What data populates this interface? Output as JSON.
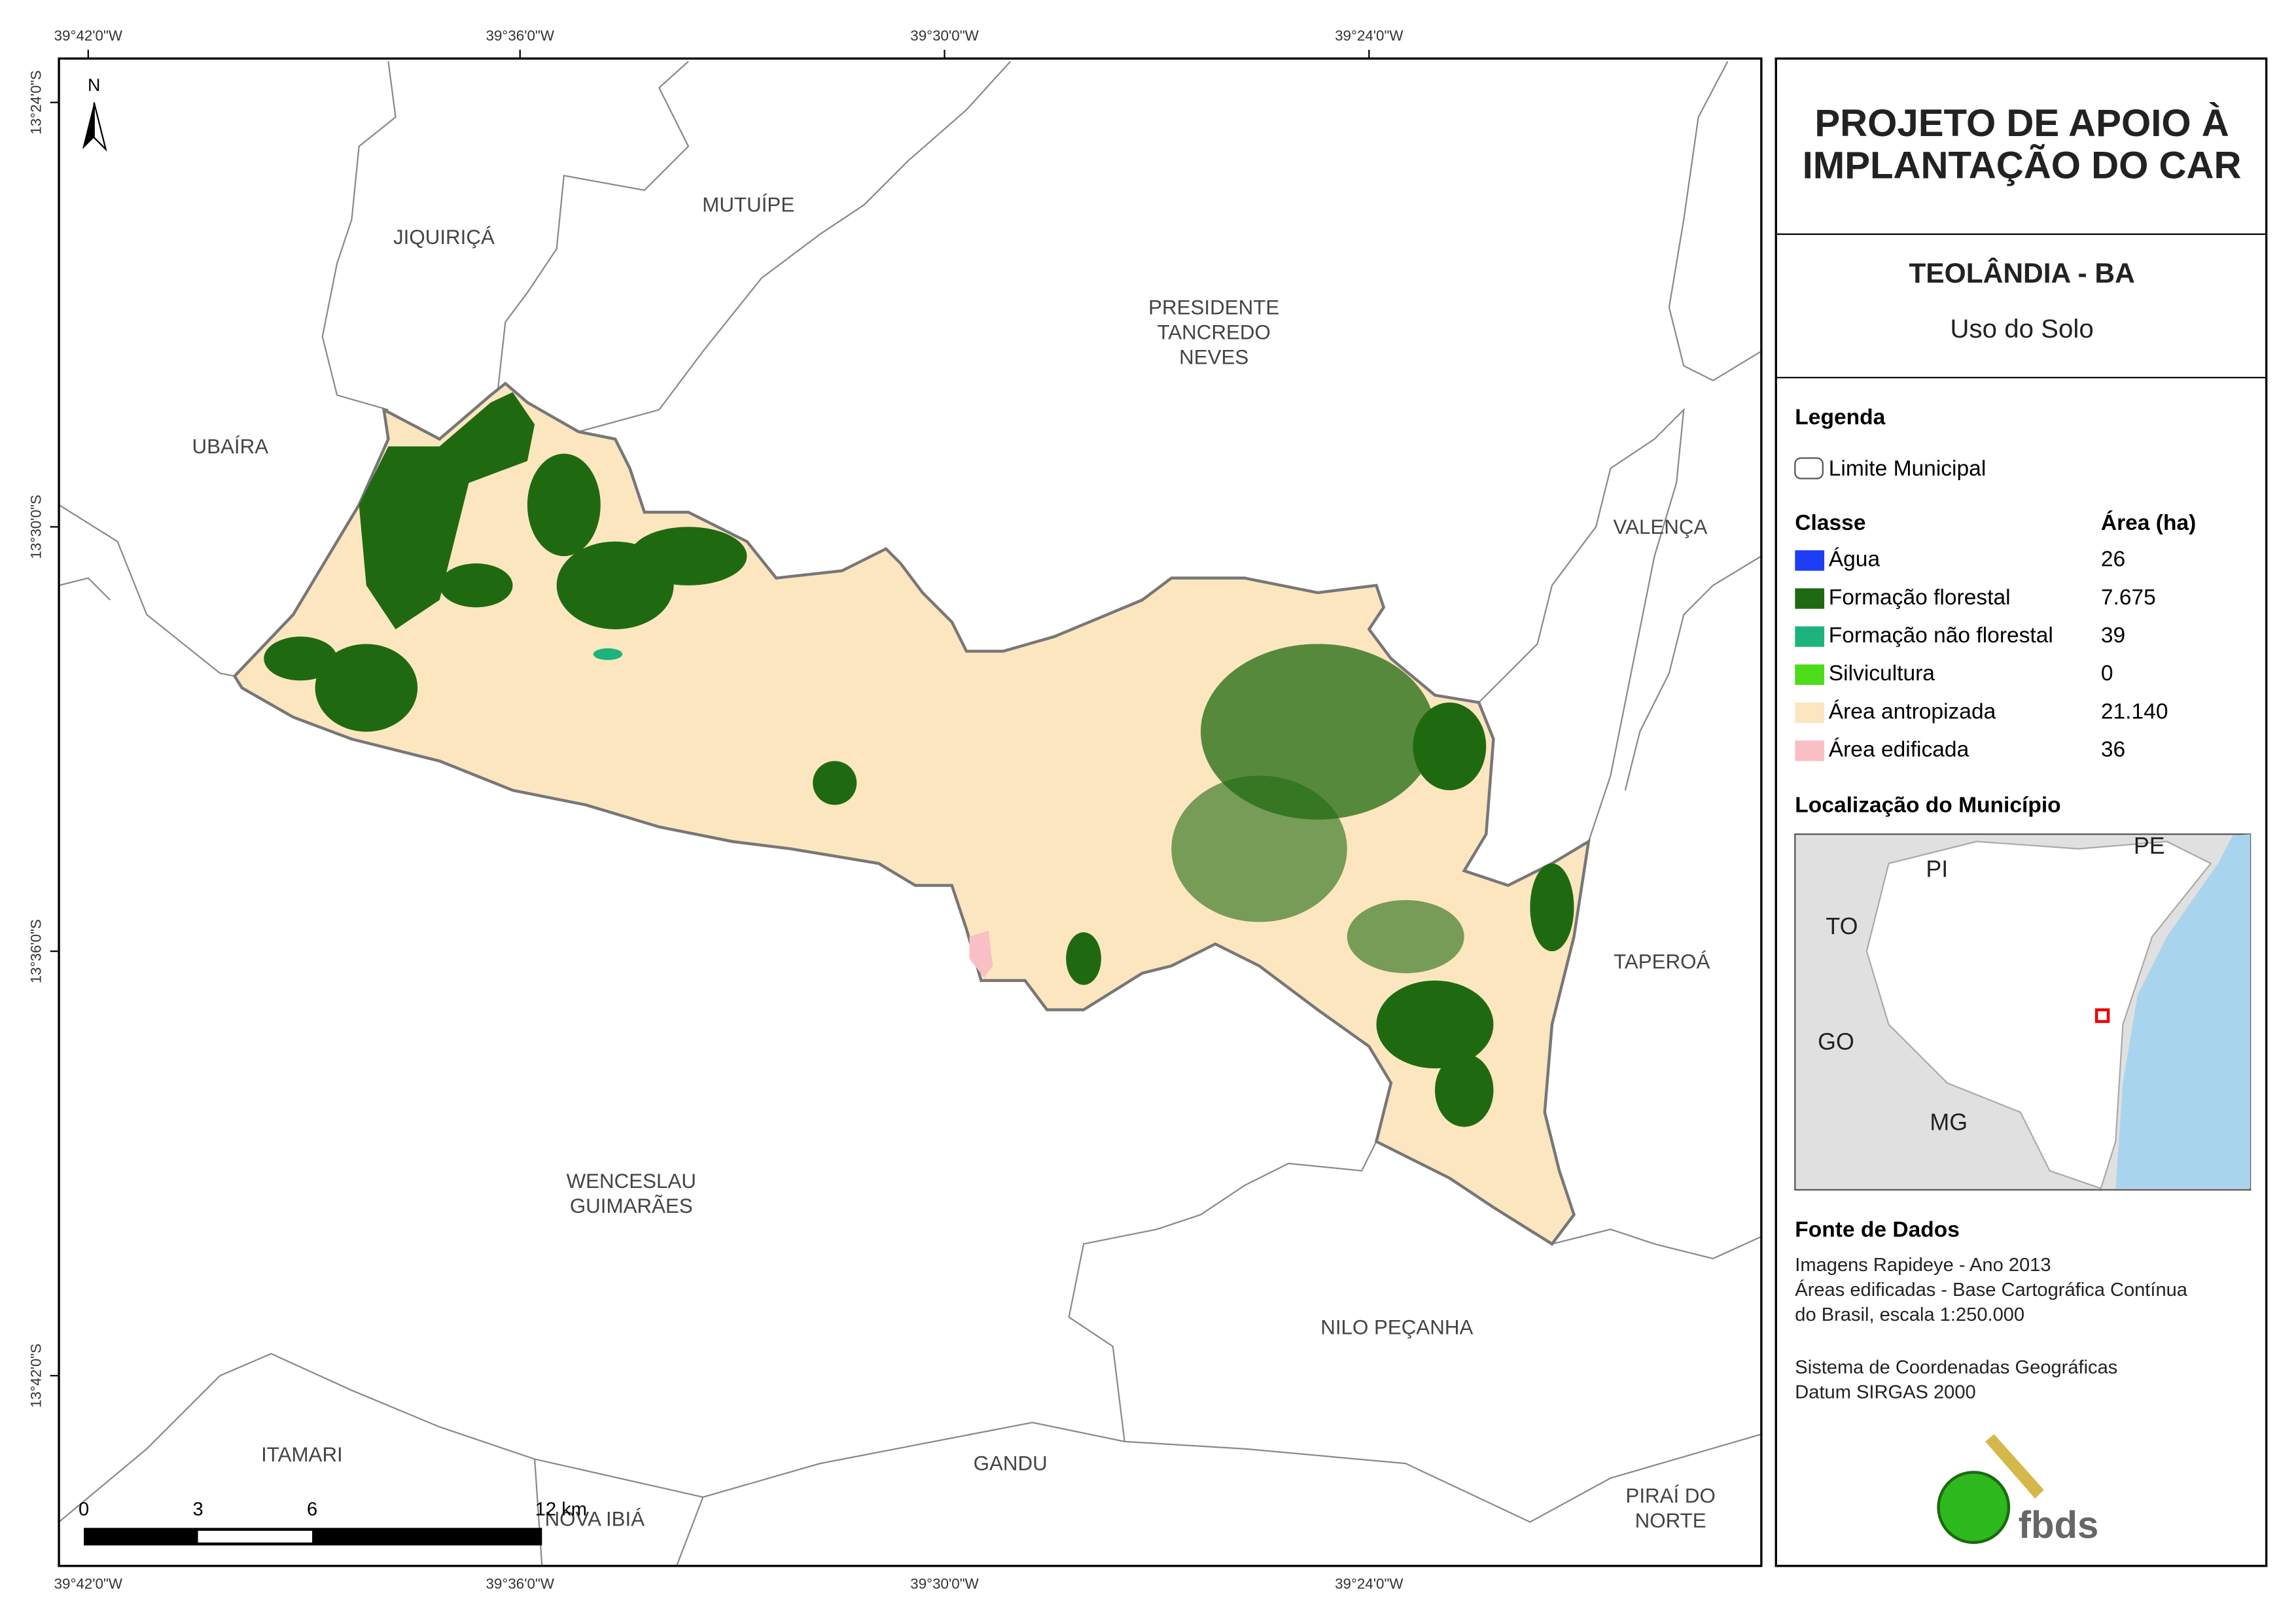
{
  "header": {
    "title_lines": [
      "PROJETO DE APOIO À",
      "IMPLANTAÇÃO DO CAR"
    ],
    "municipality": "TEOLÂNDIA - BA",
    "theme": "Uso do Solo"
  },
  "legend": {
    "title": "Legenda",
    "boundary": "Limite Municipal",
    "class_header": "Classe",
    "area_header": "Área (ha)",
    "classes": [
      {
        "name": "Água",
        "color": "#1d3ef5",
        "area": "26"
      },
      {
        "name": "Formação florestal",
        "color": "#1f6a10",
        "area": "7.675"
      },
      {
        "name": "Formação não florestal",
        "color": "#1cb47c",
        "area": "39"
      },
      {
        "name": "Silvicultura",
        "color": "#4ddc1a",
        "area": "0"
      },
      {
        "name": "Área antropizada",
        "color": "#fbe6c0",
        "area": "21.140"
      },
      {
        "name": "Área edificada",
        "color": "#f8bfc4",
        "area": "36"
      }
    ]
  },
  "location": {
    "title": "Localização do Município",
    "labels": [
      "PI",
      "PE",
      "TO",
      "GO",
      "MG"
    ]
  },
  "sources": {
    "title": "Fonte de Dados",
    "paragraphs": [
      [
        "Imagens Rapideye - Ano 2013",
        "Áreas edificadas - Base Cartográfica Contínua",
        "do Brasil, escala 1:250.000"
      ],
      [
        "Sistema de Coordenadas Geográficas",
        "Datum SIRGAS 2000"
      ]
    ]
  },
  "logo": "fbds",
  "map": {
    "north": "N",
    "municipalities": [
      {
        "lines": [
          "JIQUIRIÇÁ"
        ]
      },
      {
        "lines": [
          "MUTUÍPE"
        ]
      },
      {
        "lines": [
          "PRESIDENTE",
          "TANCREDO",
          "NEVES"
        ]
      },
      {
        "lines": [
          "UBAÍRA"
        ]
      },
      {
        "lines": [
          "VALENÇA"
        ]
      },
      {
        "lines": [
          "TAPEROÁ"
        ]
      },
      {
        "lines": [
          "WENCESLAU",
          "GUIMARÃES"
        ]
      },
      {
        "lines": [
          "NILO PEÇANHA"
        ]
      },
      {
        "lines": [
          "ITAMARI"
        ]
      },
      {
        "lines": [
          "GANDU"
        ]
      },
      {
        "lines": [
          "NOVA IBIÁ"
        ]
      },
      {
        "lines": [
          "PIRAÍ DO",
          "NORTE"
        ]
      }
    ],
    "longitudes": [
      "39°42'0\"W",
      "39°36'0\"W",
      "39°30'0\"W",
      "39°24'0\"W"
    ],
    "latitudes": [
      "13°24'0\"S",
      "13°30'0\"S",
      "13°36'0\"S",
      "13°42'0\"S"
    ],
    "scale": [
      "0",
      "3",
      "6",
      "12 km"
    ]
  }
}
